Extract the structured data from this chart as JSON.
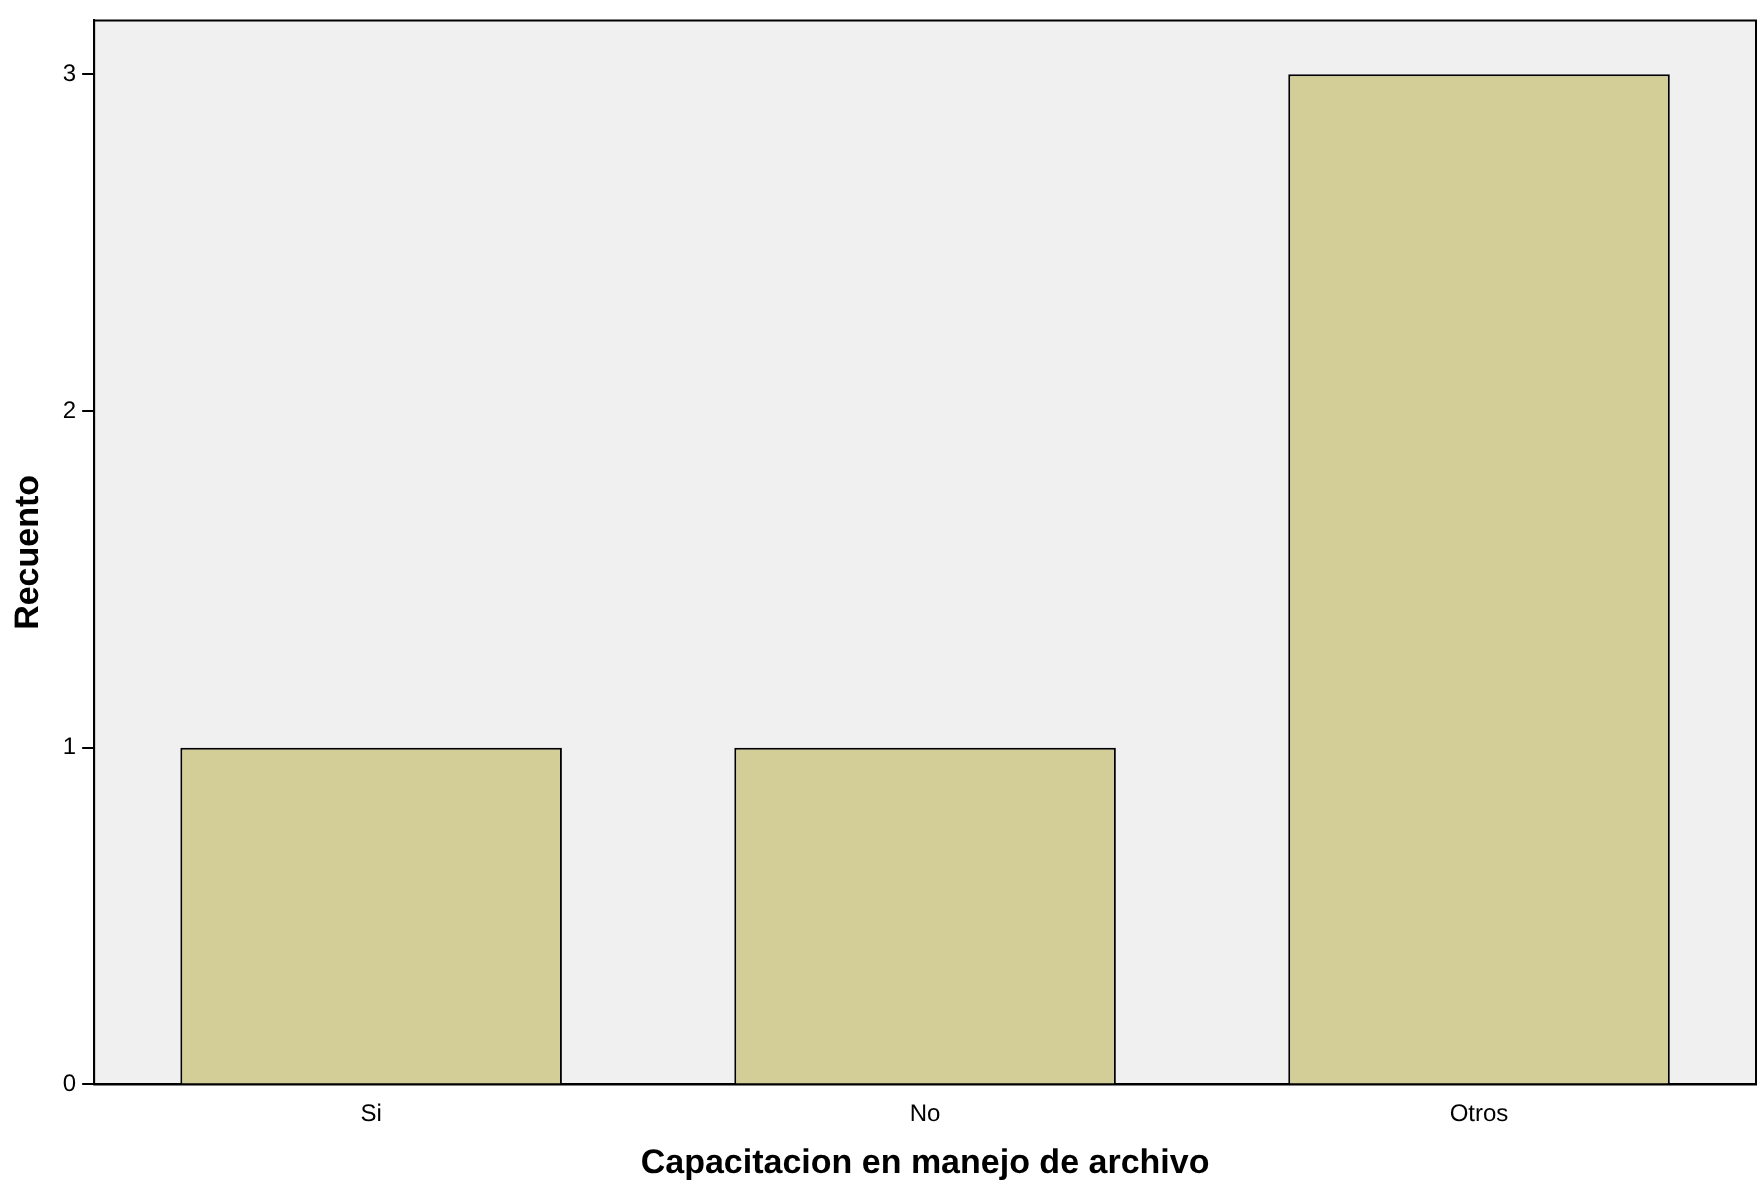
{
  "chart_data": {
    "type": "bar",
    "categories": [
      "Si",
      "No",
      "Otros"
    ],
    "values": [
      1,
      1,
      3
    ],
    "color": "#d3ce97",
    "xlabel": "Capacitacion en manejo de archivo",
    "ylabel": "Recuento",
    "ylim": [
      0,
      3.16
    ],
    "yticks": [
      0,
      1,
      2,
      3
    ],
    "grid": false,
    "legend": false
  }
}
